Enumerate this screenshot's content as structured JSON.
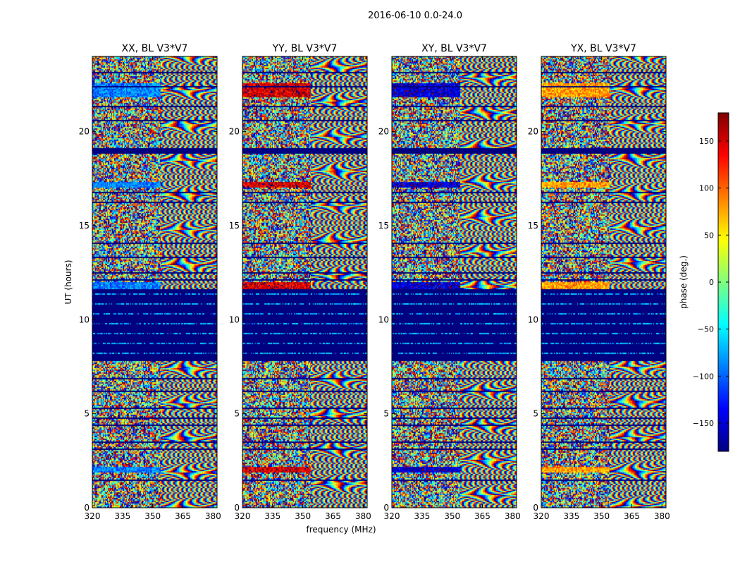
{
  "figure_title": "2016-06-10 0.0-24.0",
  "chart_data": {
    "type": "heatmap",
    "shared": {
      "xlabel": "frequency (MHz)",
      "ylabel": "UT (hours)",
      "xlim": [
        320,
        382
      ],
      "ylim": [
        0,
        24
      ],
      "xticks": [
        320,
        335,
        350,
        365,
        380
      ],
      "yticks": [
        0,
        5,
        10,
        15,
        20
      ],
      "colorbar": {
        "label": "phase (deg.)",
        "range": [
          -180,
          180
        ],
        "ticks": [
          -150,
          -100,
          -50,
          0,
          50,
          100,
          150
        ],
        "tick_labels": [
          "−150",
          "−100",
          "−50",
          "0",
          "50",
          "100",
          "150"
        ],
        "colormap": "jet",
        "colors": [
          "#00007f",
          "#0000ff",
          "#007fff",
          "#00ffff",
          "#7fff7f",
          "#ffff00",
          "#ff7f00",
          "#ff0000",
          "#7f0000"
        ]
      },
      "flagged_rows_ut": [
        [
          7.8,
          11.6
        ],
        [
          18.85,
          19.1
        ],
        [
          0.65,
          0.7
        ],
        [
          1.45,
          1.5
        ],
        [
          2.3,
          2.35
        ],
        [
          3.1,
          3.15
        ],
        [
          3.45,
          3.5
        ],
        [
          4.35,
          4.4
        ],
        [
          4.75,
          4.8
        ],
        [
          5.25,
          5.3
        ],
        [
          6.15,
          6.2
        ],
        [
          6.85,
          6.9
        ],
        [
          12.1,
          12.15
        ],
        [
          12.45,
          12.5
        ],
        [
          13.3,
          13.35
        ],
        [
          14.05,
          14.1
        ],
        [
          14.75,
          14.8
        ],
        [
          15.35,
          15.4
        ],
        [
          16.2,
          16.25
        ],
        [
          16.75,
          16.8
        ],
        [
          17.15,
          17.2
        ],
        [
          18.35,
          18.4
        ],
        [
          20.55,
          20.6
        ],
        [
          21.3,
          21.35
        ],
        [
          21.8,
          21.85
        ],
        [
          22.35,
          22.4
        ],
        [
          23.1,
          23.15
        ]
      ]
    },
    "panels": [
      {
        "title": "XX, BL V3*V7",
        "band_phase": -90
      },
      {
        "title": "YY, BL V3*V7",
        "band_phase": 150
      },
      {
        "title": "XY, BL V3*V7",
        "band_phase": -150
      },
      {
        "title": "YX, BL V3*V7",
        "band_phase": 80
      }
    ]
  }
}
